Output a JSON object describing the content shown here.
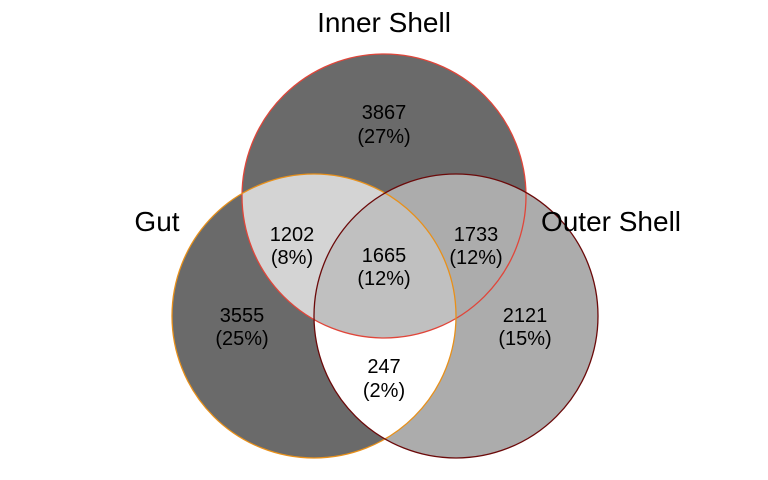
{
  "chart_data": {
    "type": "venn",
    "title": "",
    "sets": [
      {
        "name": "Inner Shell",
        "fill": "#6a6a6a",
        "stroke": "#e0463a"
      },
      {
        "name": "Gut",
        "fill": "#6a6a6a",
        "stroke": "#e8901a"
      },
      {
        "name": "Outer Shell",
        "fill": "#acacac",
        "stroke": "#6b0a0a"
      }
    ],
    "regions": [
      {
        "id": "inner_only",
        "sets": [
          "Inner Shell"
        ],
        "count": "3867",
        "percent": "(27%)",
        "fill": "#6a6a6a"
      },
      {
        "id": "gut_only",
        "sets": [
          "Gut"
        ],
        "count": "3555",
        "percent": "(25%)",
        "fill": "#6a6a6a"
      },
      {
        "id": "outer_only",
        "sets": [
          "Outer Shell"
        ],
        "count": "2121",
        "percent": "(15%)",
        "fill": "#acacac"
      },
      {
        "id": "inner_gut",
        "sets": [
          "Inner Shell",
          "Gut"
        ],
        "count": "1202",
        "percent": "(8%)",
        "fill": "#d4d4d4"
      },
      {
        "id": "inner_outer",
        "sets": [
          "Inner Shell",
          "Outer Shell"
        ],
        "count": "1733",
        "percent": "(12%)",
        "fill": "#acacac"
      },
      {
        "id": "gut_outer",
        "sets": [
          "Gut",
          "Outer Shell"
        ],
        "count": "247",
        "percent": "(2%)",
        "fill": "#ffffff"
      },
      {
        "id": "all_three",
        "sets": [
          "Inner Shell",
          "Gut",
          "Outer Shell"
        ],
        "count": "1665",
        "percent": "(12%)",
        "fill": "#c0c0c0"
      }
    ]
  }
}
